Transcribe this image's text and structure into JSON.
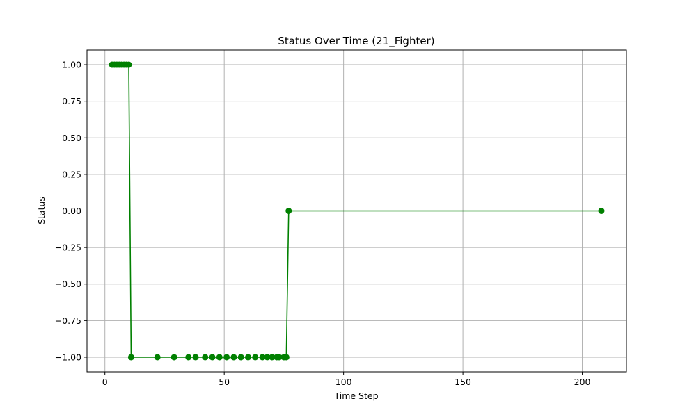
{
  "chart_data": {
    "type": "line",
    "title": "Status Over Time (21_Fighter)",
    "xlabel": "Time Step",
    "ylabel": "Status",
    "xlim": [
      -7.5,
      218.5
    ],
    "ylim": [
      -1.1,
      1.1
    ],
    "x_ticks": [
      0,
      50,
      100,
      150,
      200
    ],
    "y_ticks": [
      1.0,
      0.75,
      0.5,
      0.25,
      0.0,
      -0.25,
      -0.5,
      -0.75,
      -1.0
    ],
    "x_tick_labels": [
      "0",
      "50",
      "100",
      "150",
      "200"
    ],
    "y_tick_labels": [
      "1.00",
      "0.75",
      "0.50",
      "0.25",
      "0.00",
      "−0.25",
      "−0.50",
      "−0.75",
      "−1.00"
    ],
    "grid": true,
    "line_color": "#008000",
    "marker": "circle",
    "series": [
      {
        "x": [
          3,
          4,
          5,
          6,
          7,
          8,
          9,
          10,
          11,
          22,
          29,
          35,
          38,
          42,
          45,
          48,
          51,
          54,
          57,
          60,
          63,
          66,
          68,
          70,
          72,
          73,
          75,
          76,
          77,
          208
        ],
        "y": [
          1,
          1,
          1,
          1,
          1,
          1,
          1,
          1,
          -1,
          -1,
          -1,
          -1,
          -1,
          -1,
          -1,
          -1,
          -1,
          -1,
          -1,
          -1,
          -1,
          -1,
          -1,
          -1,
          -1,
          -1,
          -1,
          -1,
          0,
          0
        ]
      }
    ]
  }
}
